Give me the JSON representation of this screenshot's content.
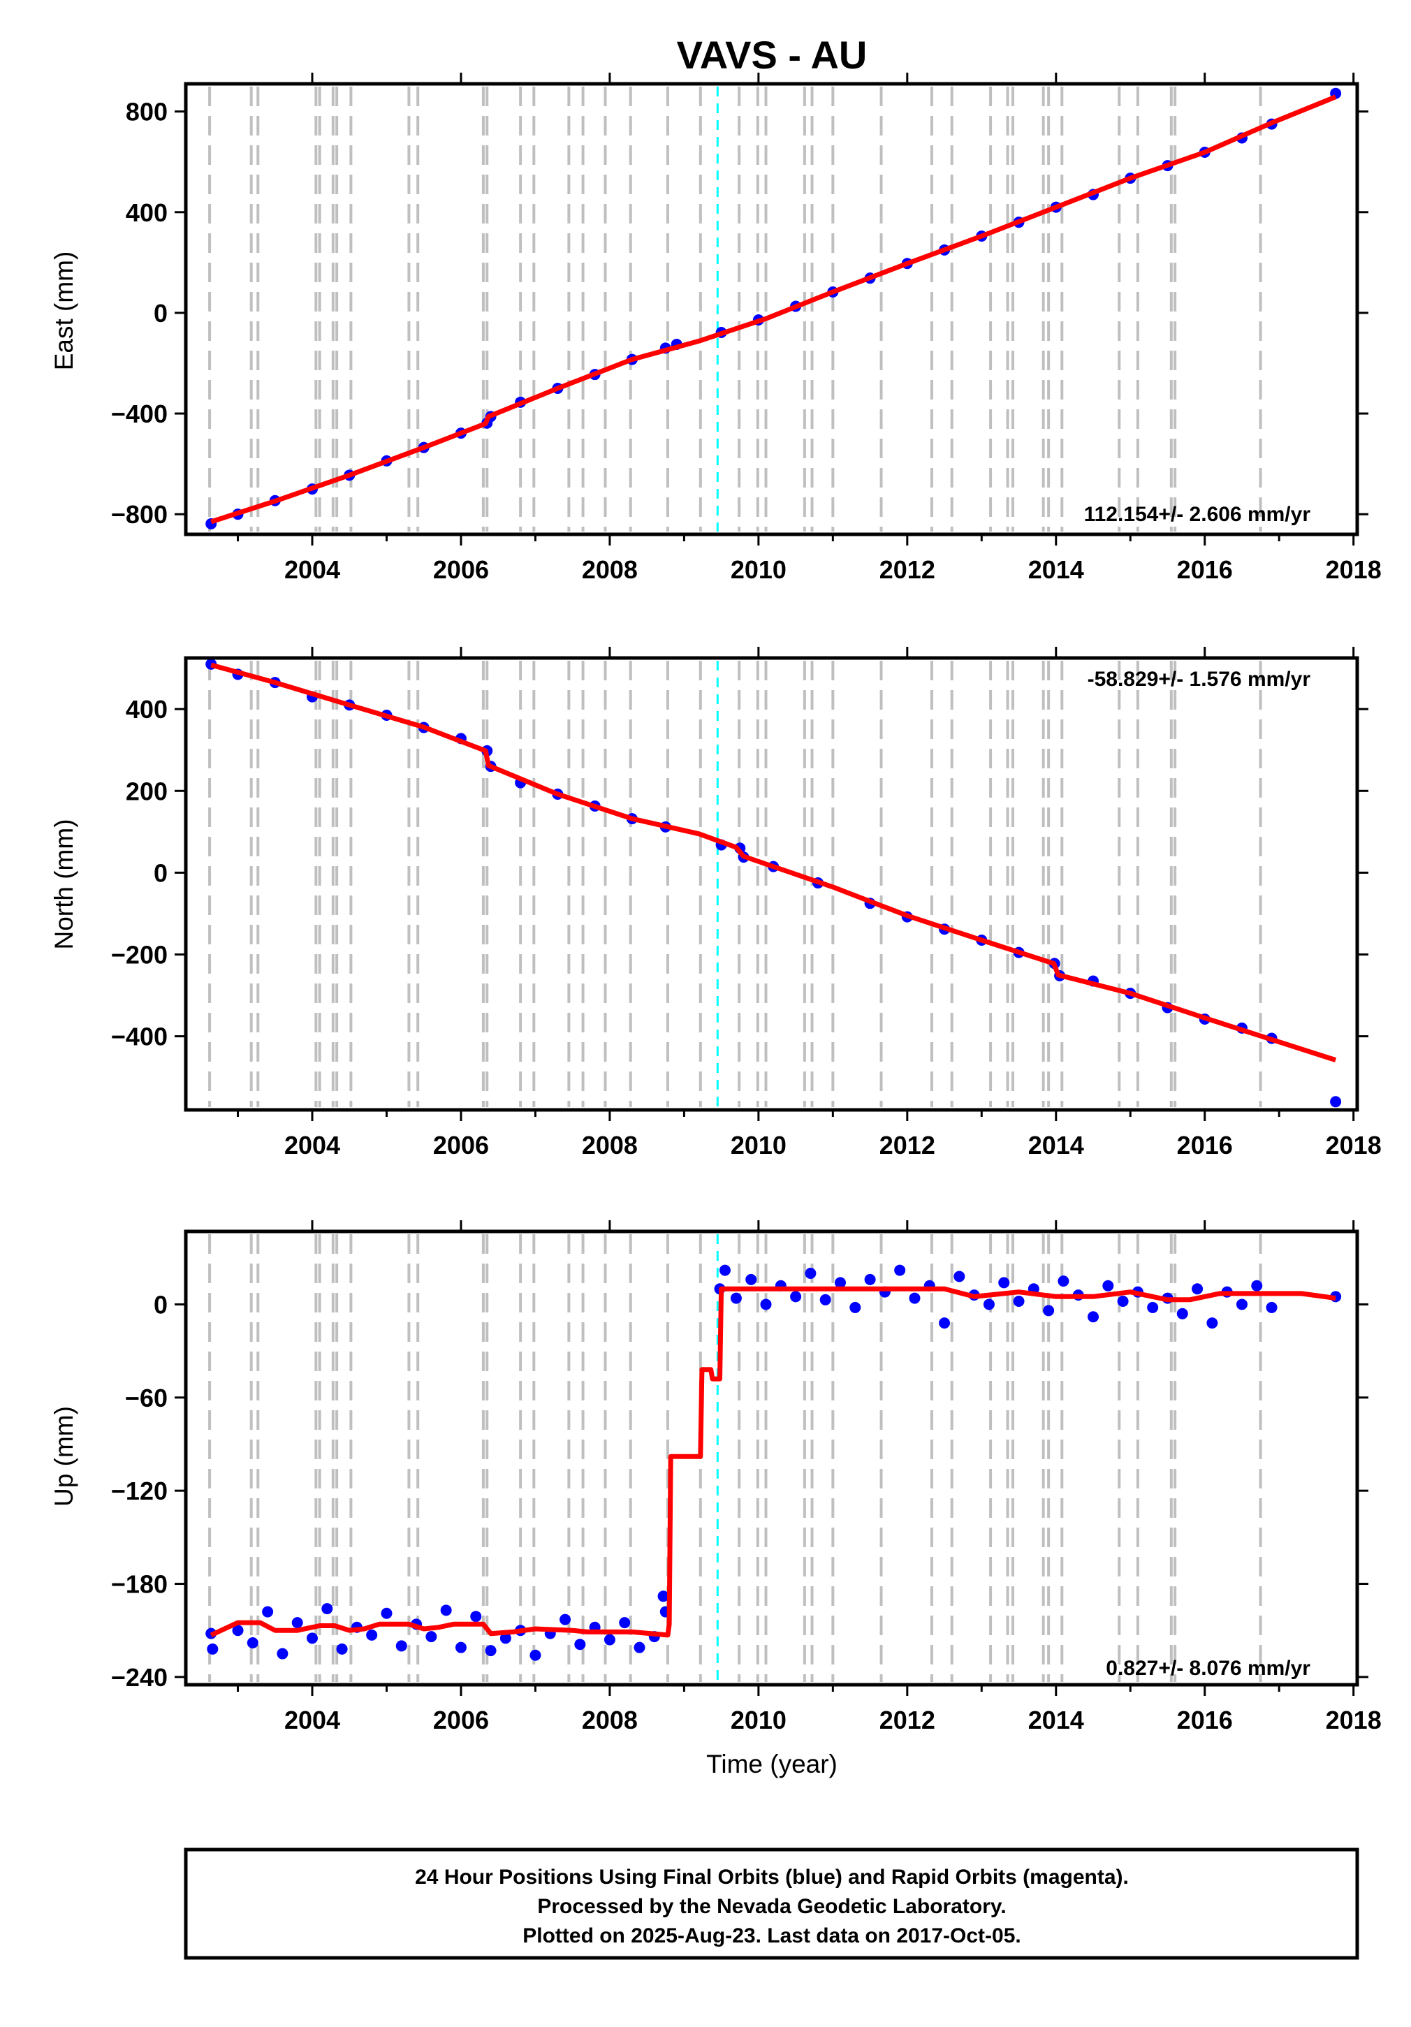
{
  "title": "VAVS - AU",
  "xlabel": "Time (year)",
  "colors": {
    "final_orbits": "#0000ff",
    "model": "#ff0000",
    "event_line": "#bfbfbf",
    "highlight_line": "#00ffff"
  },
  "footer": [
    "24 Hour Positions Using Final Orbits (blue) and Rapid Orbits (magenta).",
    "Processed by the Nevada Geodetic Laboratory.",
    "Plotted on 2025-Aug-23. Last data on 2017-Oct-05."
  ],
  "chart_data": [
    {
      "type": "scatter",
      "component": "east",
      "ylabel": "East (mm)",
      "xlim": [
        2002.3,
        2018.05
      ],
      "ylim": [
        -880,
        910
      ],
      "xticks": [
        2004,
        2006,
        2008,
        2010,
        2012,
        2014,
        2016,
        2018
      ],
      "yticks": [
        -800,
        -400,
        0,
        400,
        800
      ],
      "rate_label": "112.154+/- 2.606 mm/yr",
      "rate_position": "bottom-right",
      "grid": false,
      "event_lines": [
        2002.62,
        2003.18,
        2003.27,
        2004.05,
        2004.1,
        2004.28,
        2004.33,
        2004.52,
        2005.3,
        2005.42,
        2006.3,
        2006.35,
        2006.8,
        2006.98,
        2007.45,
        2007.64,
        2007.94,
        2008.28,
        2008.78,
        2009.22,
        2009.74,
        2009.99,
        2010.1,
        2010.62,
        2010.72,
        2011.0,
        2011.65,
        2012.33,
        2012.6,
        2013.12,
        2013.35,
        2013.42,
        2013.83,
        2013.9,
        2014.08,
        2014.85,
        2015.1,
        2015.55,
        2015.6,
        2016.75
      ],
      "highlight_line": 2009.45,
      "series": [
        {
          "role": "final_orbits",
          "color": "#0000ff",
          "x": [
            2002.64,
            2003.0,
            2003.5,
            2004.0,
            2004.5,
            2005.0,
            2005.5,
            2006.0,
            2006.35,
            2006.4,
            2006.8,
            2007.3,
            2007.8,
            2008.3,
            2008.75,
            2008.9,
            2009.5,
            2010.0,
            2010.5,
            2011.0,
            2011.5,
            2012.0,
            2012.5,
            2013.0,
            2013.5,
            2014.0,
            2014.5,
            2015.0,
            2015.5,
            2016.0,
            2016.5,
            2016.9,
            2017.76
          ],
          "y": [
            -838,
            -800,
            -746,
            -700,
            -645,
            -588,
            -535,
            -478,
            -438,
            -412,
            -355,
            -300,
            -245,
            -185,
            -140,
            -125,
            -78,
            -28,
            26,
            83,
            138,
            196,
            250,
            305,
            360,
            420,
            470,
            535,
            585,
            638,
            695,
            750,
            872
          ]
        }
      ],
      "model": {
        "color": "#ff0000",
        "x": [
          2002.64,
          2003.5,
          2004.5,
          2005.5,
          2006.33,
          2006.37,
          2007.3,
          2008.3,
          2009.2,
          2010.1,
          2011.0,
          2012.0,
          2013.0,
          2014.0,
          2015.0,
          2016.0,
          2016.9,
          2017.76
        ],
        "y": [
          -830,
          -748,
          -645,
          -535,
          -440,
          -412,
          -300,
          -185,
          -112,
          -23,
          83,
          196,
          305,
          420,
          535,
          638,
          755,
          858
        ]
      }
    },
    {
      "type": "scatter",
      "component": "north",
      "ylabel": "North (mm)",
      "xlim": [
        2002.3,
        2018.05
      ],
      "ylim": [
        -580,
        525
      ],
      "xticks": [
        2004,
        2006,
        2008,
        2010,
        2012,
        2014,
        2016,
        2018
      ],
      "yticks": [
        -400,
        -200,
        0,
        200,
        400
      ],
      "rate_label": "-58.829+/- 1.576 mm/yr",
      "rate_position": "top-right",
      "grid": false,
      "event_lines": [
        2002.62,
        2003.18,
        2003.27,
        2004.05,
        2004.1,
        2004.28,
        2004.33,
        2004.52,
        2005.3,
        2005.42,
        2006.3,
        2006.35,
        2006.8,
        2006.98,
        2007.45,
        2007.64,
        2007.94,
        2008.28,
        2008.78,
        2009.22,
        2009.74,
        2009.99,
        2010.1,
        2010.62,
        2010.72,
        2011.0,
        2011.65,
        2012.33,
        2012.6,
        2013.12,
        2013.35,
        2013.42,
        2013.83,
        2013.9,
        2014.08,
        2014.85,
        2015.1,
        2015.55,
        2015.6,
        2016.75
      ],
      "highlight_line": 2009.45,
      "series": [
        {
          "role": "final_orbits",
          "color": "#0000ff",
          "x": [
            2002.64,
            2003.0,
            2003.5,
            2004.0,
            2004.5,
            2005.0,
            2005.5,
            2006.0,
            2006.35,
            2006.4,
            2006.8,
            2007.3,
            2007.8,
            2008.3,
            2008.75,
            2009.5,
            2009.75,
            2009.8,
            2010.2,
            2010.8,
            2011.5,
            2012.0,
            2012.5,
            2013.0,
            2013.5,
            2013.98,
            2014.05,
            2014.5,
            2015.0,
            2015.5,
            2016.0,
            2016.5,
            2016.9,
            2017.76
          ],
          "y": [
            510,
            485,
            465,
            430,
            410,
            385,
            355,
            328,
            298,
            260,
            220,
            192,
            163,
            132,
            112,
            68,
            60,
            38,
            15,
            -25,
            -75,
            -108,
            -138,
            -165,
            -195,
            -222,
            -252,
            -265,
            -295,
            -330,
            -358,
            -380,
            -405,
            -560
          ]
        }
      ],
      "model": {
        "color": "#ff0000",
        "x": [
          2002.64,
          2003.5,
          2004.5,
          2005.5,
          2006.33,
          2006.37,
          2007.3,
          2008.3,
          2009.2,
          2009.7,
          2009.8,
          2011.0,
          2012.0,
          2013.0,
          2013.97,
          2014.03,
          2015.0,
          2016.0,
          2016.9,
          2017.76
        ],
        "y": [
          508,
          465,
          410,
          356,
          298,
          262,
          192,
          132,
          95,
          62,
          40,
          -35,
          -105,
          -165,
          -222,
          -250,
          -295,
          -355,
          -408,
          -458
        ]
      }
    },
    {
      "type": "scatter",
      "component": "up",
      "ylabel": "Up (mm)",
      "xlim": [
        2002.3,
        2018.05
      ],
      "ylim": [
        -245,
        47
      ],
      "xticks": [
        2004,
        2006,
        2008,
        2010,
        2012,
        2014,
        2016,
        2018
      ],
      "yticks": [
        -240,
        -180,
        -120,
        -60,
        0
      ],
      "rate_label": "0.827+/- 8.076 mm/yr",
      "rate_position": "bottom-right",
      "grid": false,
      "event_lines": [
        2002.62,
        2003.18,
        2003.27,
        2004.05,
        2004.1,
        2004.28,
        2004.33,
        2004.52,
        2005.3,
        2005.42,
        2006.3,
        2006.35,
        2006.8,
        2006.98,
        2007.45,
        2007.64,
        2007.94,
        2008.28,
        2008.78,
        2009.22,
        2009.74,
        2009.99,
        2010.1,
        2010.62,
        2010.72,
        2011.0,
        2011.65,
        2012.33,
        2012.6,
        2013.12,
        2013.35,
        2013.42,
        2013.83,
        2013.9,
        2014.08,
        2014.85,
        2015.1,
        2015.55,
        2015.6,
        2016.75
      ],
      "highlight_line": 2009.45,
      "series": [
        {
          "role": "final_orbits",
          "color": "#0000ff",
          "x": [
            2002.64,
            2002.66,
            2003.0,
            2003.2,
            2003.4,
            2003.6,
            2003.8,
            2004.0,
            2004.2,
            2004.4,
            2004.6,
            2004.8,
            2005.0,
            2005.2,
            2005.4,
            2005.6,
            2005.8,
            2006.0,
            2006.2,
            2006.4,
            2006.6,
            2006.8,
            2007.0,
            2007.2,
            2007.4,
            2007.6,
            2007.8,
            2008.0,
            2008.2,
            2008.4,
            2008.6,
            2008.72,
            2008.75,
            2009.48,
            2009.55,
            2009.7,
            2009.9,
            2010.1,
            2010.3,
            2010.5,
            2010.7,
            2010.9,
            2011.1,
            2011.3,
            2011.5,
            2011.7,
            2011.9,
            2012.1,
            2012.3,
            2012.5,
            2012.7,
            2012.9,
            2013.1,
            2013.3,
            2013.5,
            2013.7,
            2013.9,
            2014.1,
            2014.3,
            2014.5,
            2014.7,
            2014.9,
            2015.1,
            2015.3,
            2015.5,
            2015.7,
            2015.9,
            2016.1,
            2016.3,
            2016.5,
            2016.7,
            2016.9,
            2017.76
          ],
          "y": [
            -212,
            -222,
            -210,
            -218,
            -198,
            -225,
            -205,
            -215,
            -196,
            -222,
            -208,
            -213,
            -199,
            -220,
            -206,
            -214,
            -197,
            -221,
            -201,
            -223,
            -215,
            -210,
            -226,
            -212,
            -203,
            -219,
            -208,
            -216,
            -205,
            -221,
            -214,
            -188,
            -198,
            10,
            22,
            4,
            16,
            0,
            12,
            5,
            20,
            3,
            14,
            -2,
            16,
            8,
            22,
            4,
            12,
            -12,
            18,
            6,
            0,
            14,
            2,
            10,
            -4,
            15,
            6,
            -8,
            12,
            2,
            8,
            -2,
            4,
            -6,
            10,
            -12,
            8,
            0,
            12,
            -2,
            5
          ]
        }
      ],
      "model": {
        "color": "#ff0000",
        "x": [
          2002.64,
          2003.0,
          2003.3,
          2003.5,
          2003.8,
          2004.1,
          2004.3,
          2004.5,
          2004.7,
          2004.9,
          2005.3,
          2005.5,
          2005.7,
          2005.9,
          2006.3,
          2006.4,
          2006.7,
          2007.0,
          2007.5,
          2007.7,
          2008.0,
          2008.3,
          2008.78,
          2008.8,
          2008.82,
          2009.22,
          2009.24,
          2009.36,
          2009.38,
          2009.48,
          2009.5,
          2009.8,
          2010.2,
          2010.6,
          2010.9,
          2011.5,
          2012.0,
          2012.5,
          2012.9,
          2013.5,
          2014.0,
          2014.5,
          2015.0,
          2015.5,
          2015.8,
          2016.2,
          2016.6,
          2016.9,
          2017.3,
          2017.76
        ],
        "y": [
          -213,
          -205,
          -205,
          -210,
          -210,
          -207,
          -207,
          -210,
          -209,
          -206,
          -206,
          -209,
          -208,
          -206,
          -206,
          -212,
          -211,
          -209,
          -210,
          -211,
          -211,
          -211,
          -213,
          -206,
          -98,
          -98,
          -42,
          -42,
          -48,
          -48,
          10,
          10,
          10,
          10,
          10,
          10,
          10,
          10,
          5,
          8,
          5,
          5,
          8,
          3,
          3,
          7,
          7,
          7,
          7,
          4
        ]
      }
    }
  ]
}
